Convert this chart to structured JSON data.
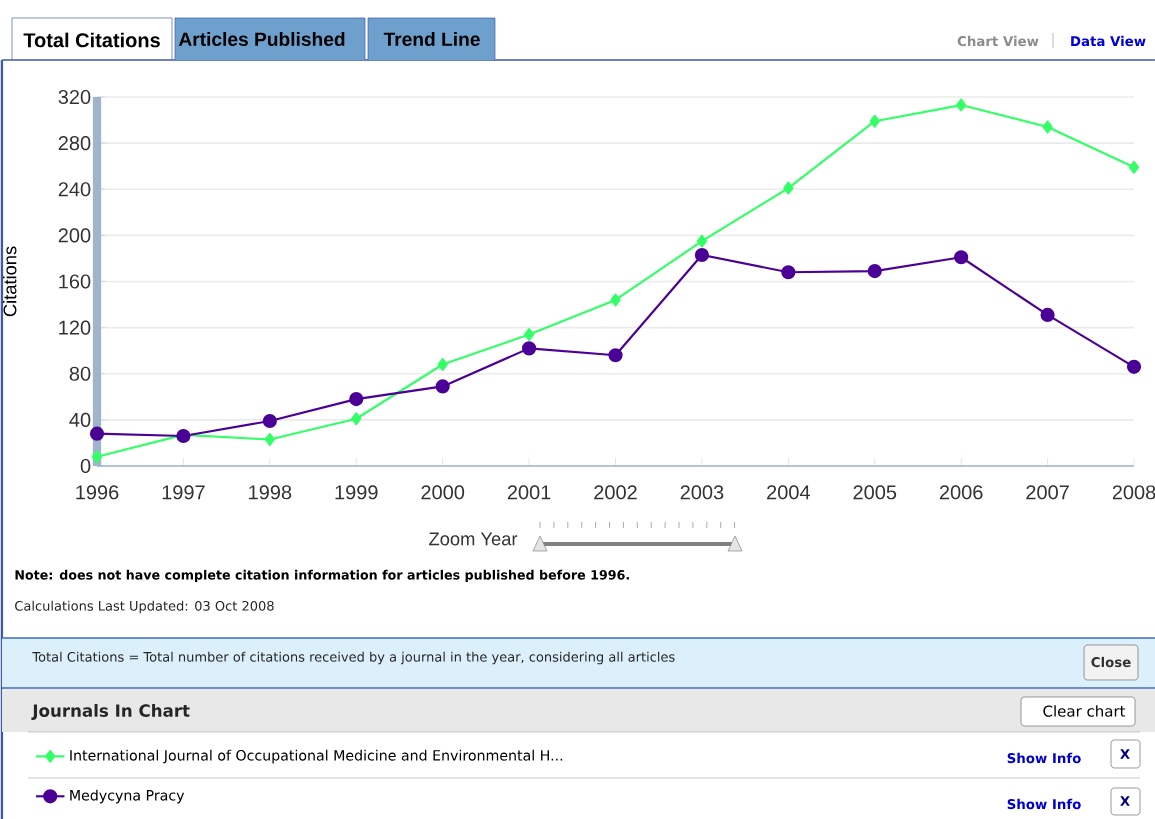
{
  "chart_data": {
    "type": "line",
    "title": "Total Citations",
    "ylabel": "Citations",
    "x": [
      1996,
      1997,
      1998,
      1999,
      2000,
      2001,
      2002,
      2003,
      2004,
      2005,
      2006,
      2007,
      2008
    ],
    "series": [
      {
        "name": "International Journal of Occupational Medicine and Environmental H...",
        "color": "#33ff66",
        "marker": "diamond",
        "values": [
          8,
          27,
          23,
          41,
          88,
          114,
          144,
          195,
          241,
          299,
          313,
          294,
          259
        ]
      },
      {
        "name": "Medycyna Pracy",
        "color": "#4b0096",
        "marker": "circle",
        "values": [
          28,
          26,
          39,
          58,
          69,
          102,
          96,
          183,
          168,
          169,
          181,
          131,
          86
        ]
      }
    ],
    "xlim": [
      1996,
      2008
    ],
    "ylim": [
      0,
      320
    ],
    "xticks": [
      1996,
      1997,
      1998,
      1999,
      2000,
      2001,
      2002,
      2003,
      2004,
      2005,
      2006,
      2007,
      2008
    ],
    "yticks": [
      0,
      40,
      80,
      120,
      160,
      200,
      240,
      280,
      320
    ],
    "grid": "y",
    "legend": "bottom",
    "annotations": [
      "Articles Published",
      "Trend Line",
      "Chart View",
      "Data View",
      "Zoom Year",
      "Note: does not have complete citation information for articles published before 1996.",
      "Calculations Last Updated: 03 Oct 2008",
      "Total Citations = Total number of citations received by a journal in the year, considering all articles",
      "Close",
      "Journals In Chart",
      "Clear chart",
      "Show Info",
      "Show Info",
      "X",
      "X"
    ]
  }
}
